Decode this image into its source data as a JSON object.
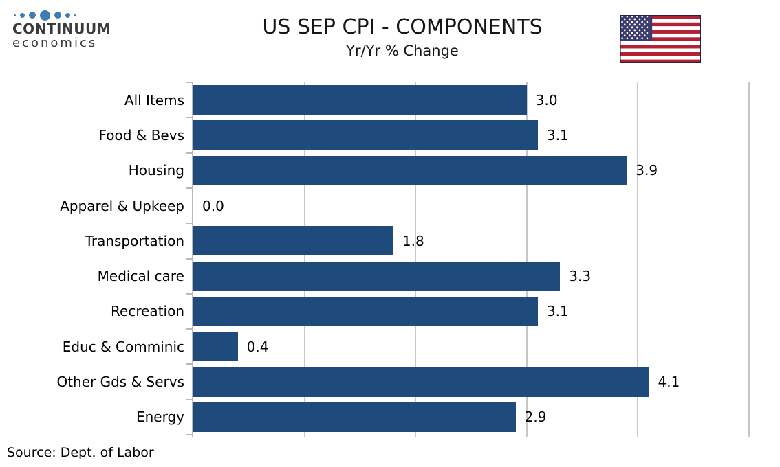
{
  "logo": {
    "line1": "CONTINUUM",
    "line2": "economics",
    "text_color": "#3b3b3b",
    "dot_color": "#3e7cb1",
    "dot_sizes": [
      3,
      7,
      10,
      15,
      10,
      7,
      3
    ]
  },
  "header": {
    "title": "US SEP CPI - COMPONENTS",
    "subtitle": "Yr/Yr % Change"
  },
  "flag": {
    "red": "#B22234",
    "white": "#FFFFFF",
    "canton_blue": "#3C3B6E",
    "border": "#23233F"
  },
  "chart_data": {
    "type": "bar",
    "orientation": "horizontal",
    "title": "US SEP CPI - COMPONENTS",
    "subtitle": "Yr/Yr % Change",
    "categories": [
      "All Items",
      "Food & Bevs",
      "Housing",
      "Apparel & Upkeep",
      "Transportation",
      "Medical care",
      "Recreation",
      "Educ & Comminic",
      "Other Gds & Servs",
      "Energy"
    ],
    "values": [
      3.0,
      3.1,
      3.9,
      0.0,
      1.8,
      3.3,
      3.1,
      0.4,
      4.1,
      2.9
    ],
    "value_labels": [
      "3.0",
      "3.1",
      "3.9",
      "0.0",
      "1.8",
      "3.3",
      "3.1",
      "0.4",
      "4.1",
      "2.9"
    ],
    "xlabel": "",
    "ylabel": "",
    "xlim": [
      0,
      5
    ],
    "gridline_interval": 1.0,
    "grid": true,
    "legend": false,
    "bar_color": "#1F4A7C",
    "gridline_color": "#C7C7C7",
    "axis_color": "#B9B9B9"
  },
  "footer": {
    "source": "Source: Dept. of Labor"
  }
}
